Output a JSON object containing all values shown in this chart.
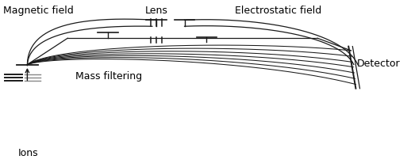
{
  "bg_color": "#ffffff",
  "line_color": "#1a1a1a",
  "labels": {
    "magnetic_field": "Magnetic field",
    "lens": "Lens",
    "electrostatic_field": "Electrostatic field",
    "mass_filtering": "Mass filtering",
    "detector": "Detector",
    "ions": "Ions"
  },
  "fontsize": 9
}
